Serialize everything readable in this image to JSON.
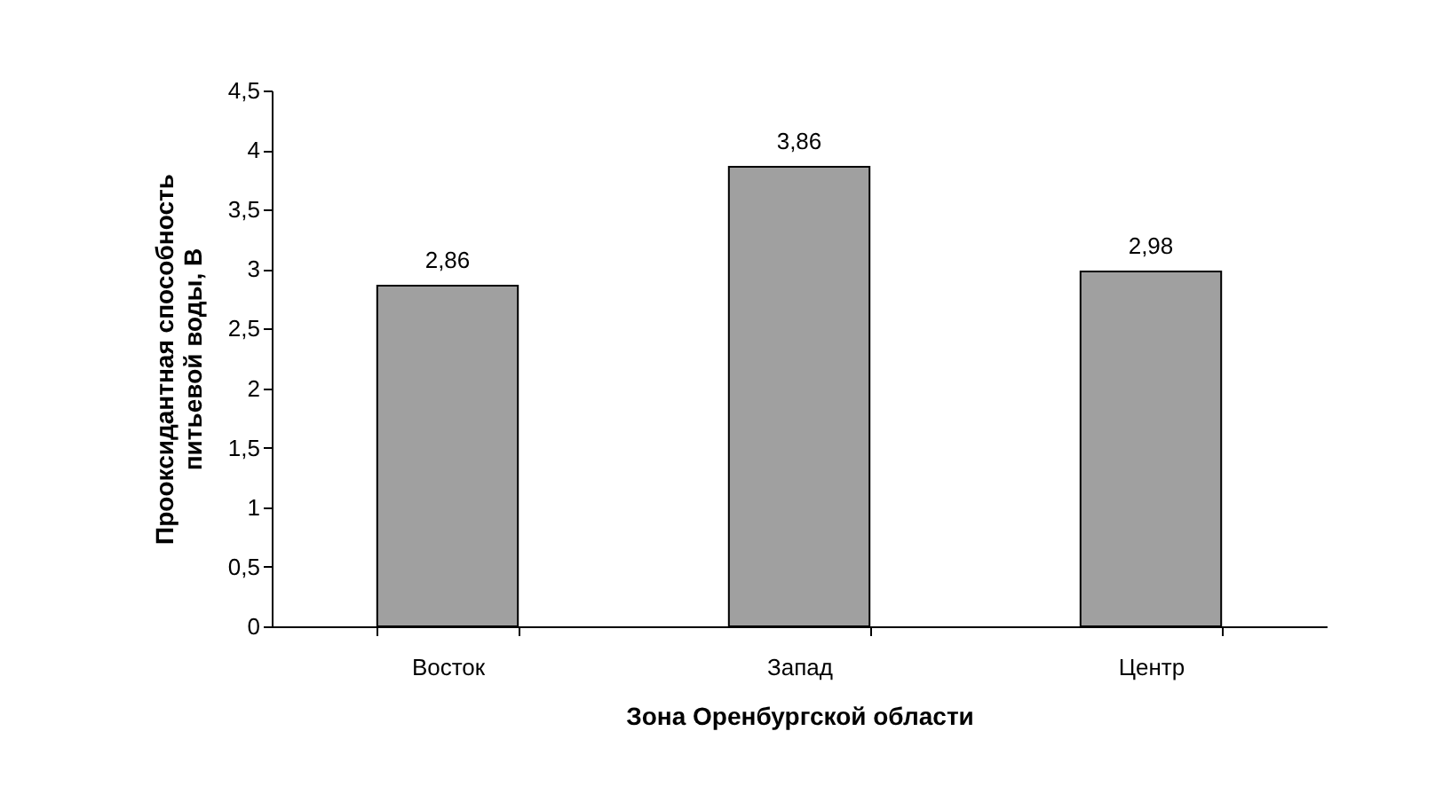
{
  "chart_data": {
    "type": "bar",
    "xlabel": "Зона Оренбургской области",
    "ylabel": "Прооксидантная способность питьевой воды, В",
    "categories": [
      "Восток",
      "Запад",
      "Центр"
    ],
    "values": [
      2.86,
      3.86,
      2.98
    ],
    "value_labels": [
      "2,86",
      "3,86",
      "2,98"
    ],
    "color": "#a0a0a0",
    "ylim": [
      0,
      4.5
    ],
    "yticks": [
      0,
      {
        "value": 0.5,
        "label": "0,5"
      },
      1,
      {
        "value": 1.5,
        "label": "1,5"
      },
      2,
      {
        "value": 2.5,
        "label": "2,5"
      },
      3,
      {
        "value": 3.5,
        "label": "3,5"
      },
      4,
      {
        "value": 4.5,
        "label": "4,5"
      }
    ],
    "grid": false
  }
}
